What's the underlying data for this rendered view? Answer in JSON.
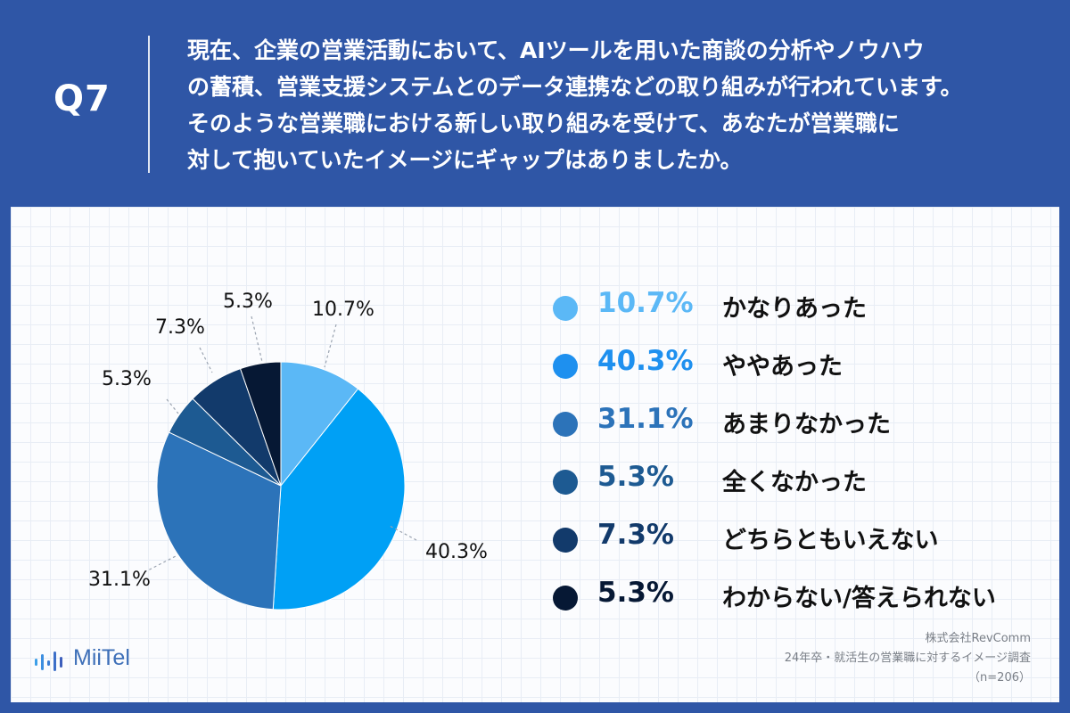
{
  "question": {
    "number": "Q7",
    "lines": [
      "現在、企業の営業活動において、AIツールを用いた商談の分析やノウハウ",
      "の蓄積、営業支援システムとのデータ連携などの取り組みが行われています。",
      "そのような営業職における新しい取り組みを受けて、あなたが営業職に",
      "対して抱いていたイメージにギャップはありましたか。"
    ]
  },
  "chart_data": {
    "type": "pie",
    "start_angle": "12 o'clock",
    "direction": "clockwise",
    "slices": [
      {
        "label": "かなりあった",
        "value": 10.7,
        "display": "10.7%",
        "color": "#5bb8f6"
      },
      {
        "label": "ややあった",
        "value": 40.3,
        "display": "40.3%",
        "color": "#00a0f5"
      },
      {
        "label": "あまりなかった",
        "value": 31.1,
        "display": "31.1%",
        "color": "#2c73b9"
      },
      {
        "label": "全くなかった",
        "value": 5.3,
        "display": "5.3%",
        "color": "#1d5a92"
      },
      {
        "label": "どちらともいえない",
        "value": 7.3,
        "display": "7.3%",
        "color": "#123a6b"
      },
      {
        "label": "わからない/答えられない",
        "value": 5.3,
        "display": "5.3%",
        "color": "#061834"
      }
    ]
  },
  "legend": {
    "items": [
      {
        "pct": "10.7%",
        "label": "かなりあった",
        "color": "#5bb8f6",
        "pct_color": "#5bb8f6"
      },
      {
        "pct": "40.3%",
        "label": "ややあった",
        "color": "#1e90ef",
        "pct_color": "#1e90ef"
      },
      {
        "pct": "31.1%",
        "label": "あまりなかった",
        "color": "#2c73b9",
        "pct_color": "#2c73b9"
      },
      {
        "pct": "5.3%",
        "label": "全くなかった",
        "color": "#1d5a92",
        "pct_color": "#1d5a92"
      },
      {
        "pct": "7.3%",
        "label": "どちらともいえない",
        "color": "#123a6b",
        "pct_color": "#123a6b"
      },
      {
        "pct": "5.3%",
        "label": "わからない/答えられない",
        "color": "#061834",
        "pct_color": "#061834"
      }
    ]
  },
  "logo": {
    "text": "MiiTel",
    "icon": "audio-bars-icon",
    "color": "#3d6fb8"
  },
  "source": {
    "company": "株式会社RevComm",
    "survey": "24年卒・就活生の営業職に対するイメージ調査",
    "sample": "（n=206）"
  }
}
